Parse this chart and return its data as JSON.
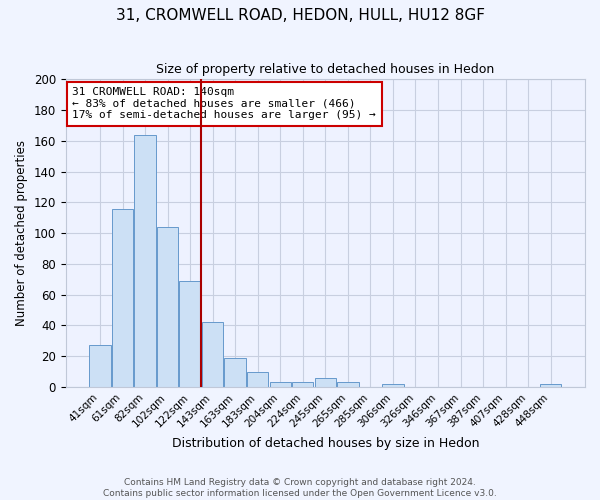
{
  "title1": "31, CROMWELL ROAD, HEDON, HULL, HU12 8GF",
  "title2": "Size of property relative to detached houses in Hedon",
  "xlabel": "Distribution of detached houses by size in Hedon",
  "ylabel": "Number of detached properties",
  "bar_labels": [
    "41sqm",
    "61sqm",
    "82sqm",
    "102sqm",
    "122sqm",
    "143sqm",
    "163sqm",
    "183sqm",
    "204sqm",
    "224sqm",
    "245sqm",
    "265sqm",
    "285sqm",
    "306sqm",
    "326sqm",
    "346sqm",
    "367sqm",
    "387sqm",
    "407sqm",
    "428sqm",
    "448sqm"
  ],
  "bar_values": [
    27,
    116,
    164,
    104,
    69,
    42,
    19,
    10,
    3,
    3,
    6,
    3,
    0,
    2,
    0,
    0,
    0,
    0,
    0,
    0,
    2
  ],
  "bar_color": "#cce0f5",
  "bar_edge_color": "#6699cc",
  "vline_index": 5,
  "vline_color": "#aa0000",
  "annotation_line1": "31 CROMWELL ROAD: 140sqm",
  "annotation_line2": "← 83% of detached houses are smaller (466)",
  "annotation_line3": "17% of semi-detached houses are larger (95) →",
  "annotation_box_edge": "#cc0000",
  "ylim": [
    0,
    200
  ],
  "yticks": [
    0,
    20,
    40,
    60,
    80,
    100,
    120,
    140,
    160,
    180,
    200
  ],
  "footer1": "Contains HM Land Registry data © Crown copyright and database right 2024.",
  "footer2": "Contains public sector information licensed under the Open Government Licence v3.0.",
  "bg_color": "#f0f4ff",
  "plot_bg_color": "#eef2ff",
  "grid_color": "#c8cfe0"
}
